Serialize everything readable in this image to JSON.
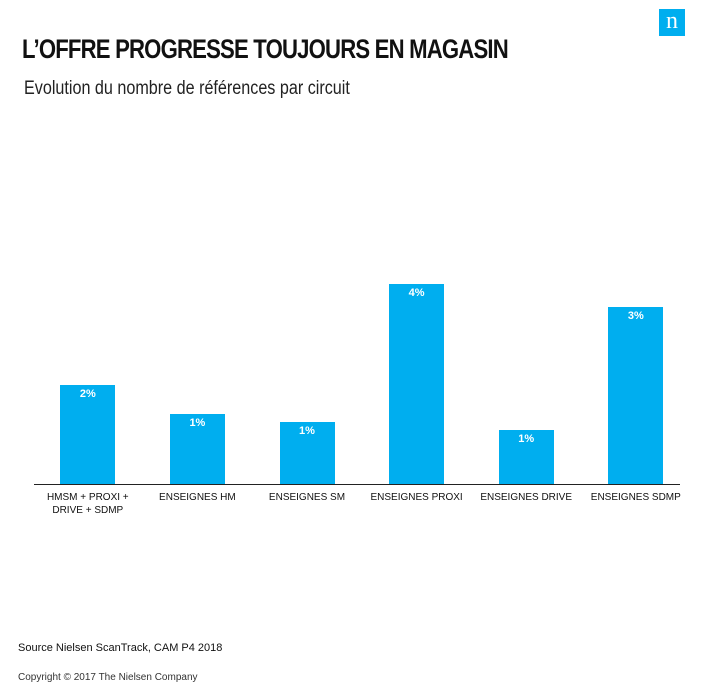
{
  "logo": "n",
  "chart_data": {
    "type": "bar",
    "title": "L’OFFRE PROGRESSE TOUJOURS EN MAGASIN",
    "subtitle": "Evolution du nombre de références par circuit",
    "categories": [
      "HMSM + PROXI + DRIVE + SDMP",
      "ENSEIGNES HM",
      "ENSEIGNES SM",
      "ENSEIGNES PROXI",
      "ENSEIGNES DRIVE",
      "ENSEIGNES SDMP"
    ],
    "values": [
      1.93,
      1.37,
      1.21,
      3.9,
      1.05,
      3.45
    ],
    "value_labels": [
      "2%",
      "1%",
      "1%",
      "4%",
      "1%",
      "3%"
    ],
    "color": "#00aeef",
    "source": "Source Nielsen ScanTrack, CAM P4  2018"
  },
  "footer": "Copyright © 2017 The Nielsen Company"
}
